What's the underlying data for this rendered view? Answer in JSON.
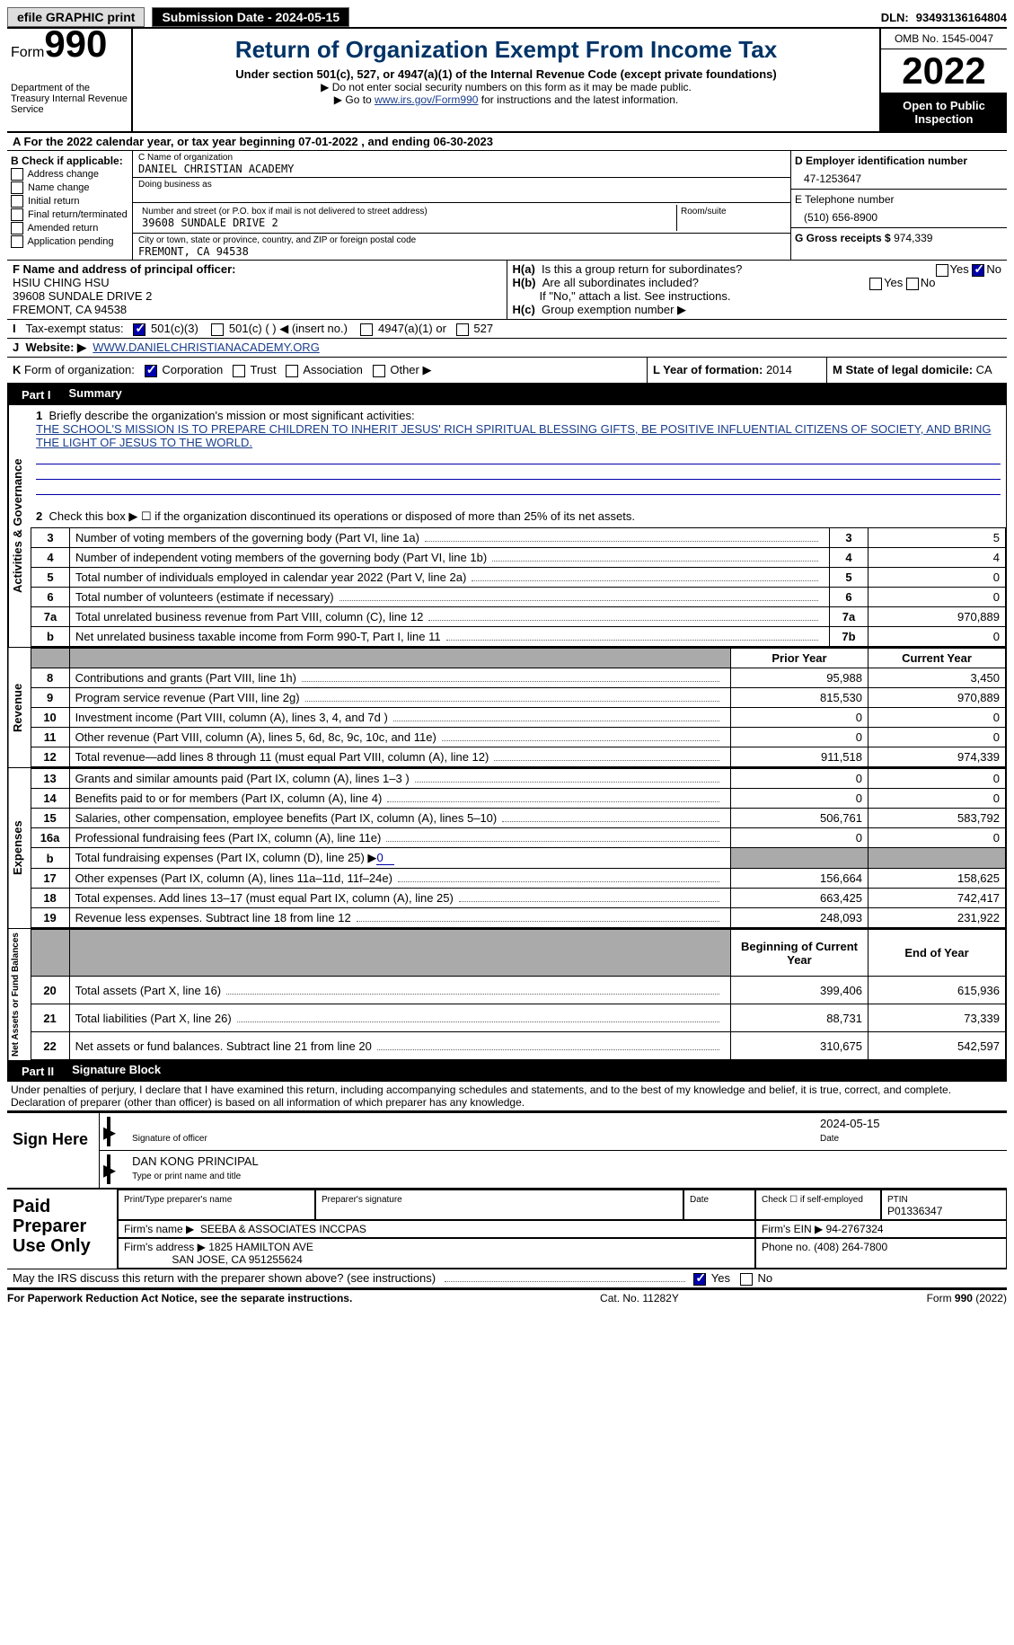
{
  "topbar": {
    "efile": "efile GRAPHIC print",
    "submission": "Submission Date - 2024-05-15",
    "dln_label": "DLN:",
    "dln": "93493136164804"
  },
  "header": {
    "form_label": "Form",
    "form_no": "990",
    "dept": "Department of the Treasury Internal Revenue Service",
    "title": "Return of Organization Exempt From Income Tax",
    "sub1": "Under section 501(c), 527, or 4947(a)(1) of the Internal Revenue Code (except private foundations)",
    "sub2": "▶ Do not enter social security numbers on this form as it may be made public.",
    "sub3_left": "▶ Go to ",
    "sub3_link": "www.irs.gov/Form990",
    "sub3_right": " for instructions and the latest information.",
    "omb": "OMB No. 1545-0047",
    "year": "2022",
    "o2pi": "Open to Public Inspection"
  },
  "lineA": "For the 2022 calendar year, or tax year beginning 07-01-2022    , and ending 06-30-2023",
  "B": {
    "title": "B Check if applicable:",
    "opts": [
      "Address change",
      "Name change",
      "Initial return",
      "Final return/terminated",
      "Amended return",
      "Application pending"
    ]
  },
  "C": {
    "name_label": "C Name of organization",
    "name": "DANIEL CHRISTIAN ACADEMY",
    "dba_label": "Doing business as",
    "street_label": "Number and street (or P.O. box if mail is not delivered to street address)",
    "room_label": "Room/suite",
    "street": "39608 SUNDALE DRIVE 2",
    "city_label": "City or town, state or province, country, and ZIP or foreign postal code",
    "city": "FREMONT, CA  94538"
  },
  "D": {
    "label": "D Employer identification number",
    "value": "47-1253647"
  },
  "E": {
    "label": "E Telephone number",
    "value": "(510) 656-8900"
  },
  "G": {
    "label": "G Gross receipts $",
    "value": "974,339"
  },
  "F": {
    "label": "F  Name and address of principal officer:",
    "name": "HSIU CHING HSU",
    "street": "39608 SUNDALE DRIVE 2",
    "city": "FREMONT, CA  94538"
  },
  "Ha": "Is this a group return for subordinates?",
  "Hb": "Are all subordinates included?",
  "Hnote": "If \"No,\" attach a list. See instructions.",
  "Hc": "Group exemption number ▶",
  "tax_exempt": "Tax-exempt status:",
  "tax_opts": {
    "a": "501(c)(3)",
    "b": "501(c) (  ) ◀ (insert no.)",
    "c": "4947(a)(1) or",
    "d": "527"
  },
  "J": {
    "label": "Website: ▶",
    "value": "WWW.DANIELCHRISTIANACADEMY.ORG"
  },
  "K": "Form of organization:",
  "Kopts": {
    "a": "Corporation",
    "b": "Trust",
    "c": "Association",
    "d": "Other ▶"
  },
  "L": {
    "label": "L Year of formation:",
    "value": "2014"
  },
  "M": {
    "label": "M State of legal domicile:",
    "value": "CA"
  },
  "part1": {
    "num": "Part I",
    "title": "Summary"
  },
  "summary": {
    "line1_q": "Briefly describe the organization's mission or most significant activities:",
    "line1_a": "THE SCHOOL'S MISSION IS TO PREPARE CHILDREN TO INHERIT JESUS' RICH SPIRITUAL BLESSING GIFTS, BE POSITIVE INFLUENTIAL CITIZENS OF SOCIETY, AND BRING THE LIGHT OF JESUS TO THE WORLD.",
    "line2": "Check this box ▶ ☐ if the organization discontinued its operations or disposed of more than 25% of its net assets.",
    "rows": [
      {
        "n": "3",
        "t": "Number of voting members of the governing body (Part VI, line 1a)",
        "l": "3",
        "v": "5"
      },
      {
        "n": "4",
        "t": "Number of independent voting members of the governing body (Part VI, line 1b)",
        "l": "4",
        "v": "4"
      },
      {
        "n": "5",
        "t": "Total number of individuals employed in calendar year 2022 (Part V, line 2a)",
        "l": "5",
        "v": "0"
      },
      {
        "n": "6",
        "t": "Total number of volunteers (estimate if necessary)",
        "l": "6",
        "v": "0"
      },
      {
        "n": "7a",
        "t": "Total unrelated business revenue from Part VIII, column (C), line 12",
        "l": "7a",
        "v": "970,889"
      },
      {
        "n": " b",
        "t": "Net unrelated business taxable income from Form 990-T, Part I, line 11",
        "l": "7b",
        "v": "0"
      }
    ],
    "pycy": {
      "prior": "Prior Year",
      "current": "Current Year",
      "begin": "Beginning of Current Year",
      "end": "End of Year"
    },
    "revenue": [
      {
        "n": "8",
        "t": "Contributions and grants (Part VIII, line 1h)",
        "p": "95,988",
        "c": "3,450"
      },
      {
        "n": "9",
        "t": "Program service revenue (Part VIII, line 2g)",
        "p": "815,530",
        "c": "970,889"
      },
      {
        "n": "10",
        "t": "Investment income (Part VIII, column (A), lines 3, 4, and 7d )",
        "p": "0",
        "c": "0"
      },
      {
        "n": "11",
        "t": "Other revenue (Part VIII, column (A), lines 5, 6d, 8c, 9c, 10c, and 11e)",
        "p": "0",
        "c": "0"
      },
      {
        "n": "12",
        "t": "Total revenue—add lines 8 through 11 (must equal Part VIII, column (A), line 12)",
        "p": "911,518",
        "c": "974,339"
      }
    ],
    "expenses": [
      {
        "n": "13",
        "t": "Grants and similar amounts paid (Part IX, column (A), lines 1–3 )",
        "p": "0",
        "c": "0"
      },
      {
        "n": "14",
        "t": "Benefits paid to or for members (Part IX, column (A), line 4)",
        "p": "0",
        "c": "0"
      },
      {
        "n": "15",
        "t": "Salaries, other compensation, employee benefits (Part IX, column (A), lines 5–10)",
        "p": "506,761",
        "c": "583,792"
      },
      {
        "n": "16a",
        "t": "Professional fundraising fees (Part IX, column (A), line 11e)",
        "p": "0",
        "c": "0"
      },
      {
        "n": "b",
        "t": "Total fundraising expenses (Part IX, column (D), line 25) ▶",
        "p": "grey",
        "c": "grey",
        "fund": "0"
      },
      {
        "n": "17",
        "t": "Other expenses (Part IX, column (A), lines 11a–11d, 11f–24e)",
        "p": "156,664",
        "c": "158,625"
      },
      {
        "n": "18",
        "t": "Total expenses. Add lines 13–17 (must equal Part IX, column (A), line 25)",
        "p": "663,425",
        "c": "742,417"
      },
      {
        "n": "19",
        "t": "Revenue less expenses. Subtract line 18 from line 12",
        "p": "248,093",
        "c": "231,922"
      }
    ],
    "netassets": [
      {
        "n": "20",
        "t": "Total assets (Part X, line 16)",
        "p": "399,406",
        "c": "615,936"
      },
      {
        "n": "21",
        "t": "Total liabilities (Part X, line 26)",
        "p": "88,731",
        "c": "73,339"
      },
      {
        "n": "22",
        "t": "Net assets or fund balances. Subtract line 21 from line 20",
        "p": "310,675",
        "c": "542,597"
      }
    ]
  },
  "part2": {
    "num": "Part II",
    "title": "Signature Block"
  },
  "sig": {
    "penalty": "Under penalties of perjury, I declare that I have examined this return, including accompanying schedules and statements, and to the best of my knowledge and belief, it is true, correct, and complete. Declaration of preparer (other than officer) is based on all information of which preparer has any knowledge.",
    "sign_here": "Sign Here",
    "date": "2024-05-15",
    "sig_of_officer": "Signature of officer",
    "date_label": "Date",
    "name": "DAN KONG  PRINCIPAL",
    "name_label": "Type or print name and title"
  },
  "paid": {
    "side": "Paid Preparer Use Only",
    "print_label": "Print/Type preparer's name",
    "sig_label": "Preparer's signature",
    "date_label": "Date",
    "check_label": "Check ☐ if self-employed",
    "ptin_label": "PTIN",
    "ptin": "P01336347",
    "firm_name_label": "Firm's name    ▶",
    "firm_name": "SEEBA & ASSOCIATES INCCPAS",
    "firm_ein_label": "Firm's EIN ▶",
    "firm_ein": "94-2767324",
    "firm_addr_label": "Firm's address ▶",
    "firm_addr1": "1825 HAMILTON AVE",
    "firm_addr2": "SAN JOSE, CA  951255624",
    "phone_label": "Phone no.",
    "phone": "(408) 264-7800"
  },
  "may": "May the IRS discuss this return with the preparer shown above? (see instructions)",
  "footer": {
    "left": "For Paperwork Reduction Act Notice, see the separate instructions.",
    "mid": "Cat. No. 11282Y",
    "right": "Form 990 (2022)"
  },
  "side_labels": {
    "activities": "Activities & Governance",
    "revenue": "Revenue",
    "expenses": "Expenses",
    "netassets": "Net Assets or Fund Balances"
  },
  "yesno": {
    "yes": "Yes",
    "no": "No"
  }
}
